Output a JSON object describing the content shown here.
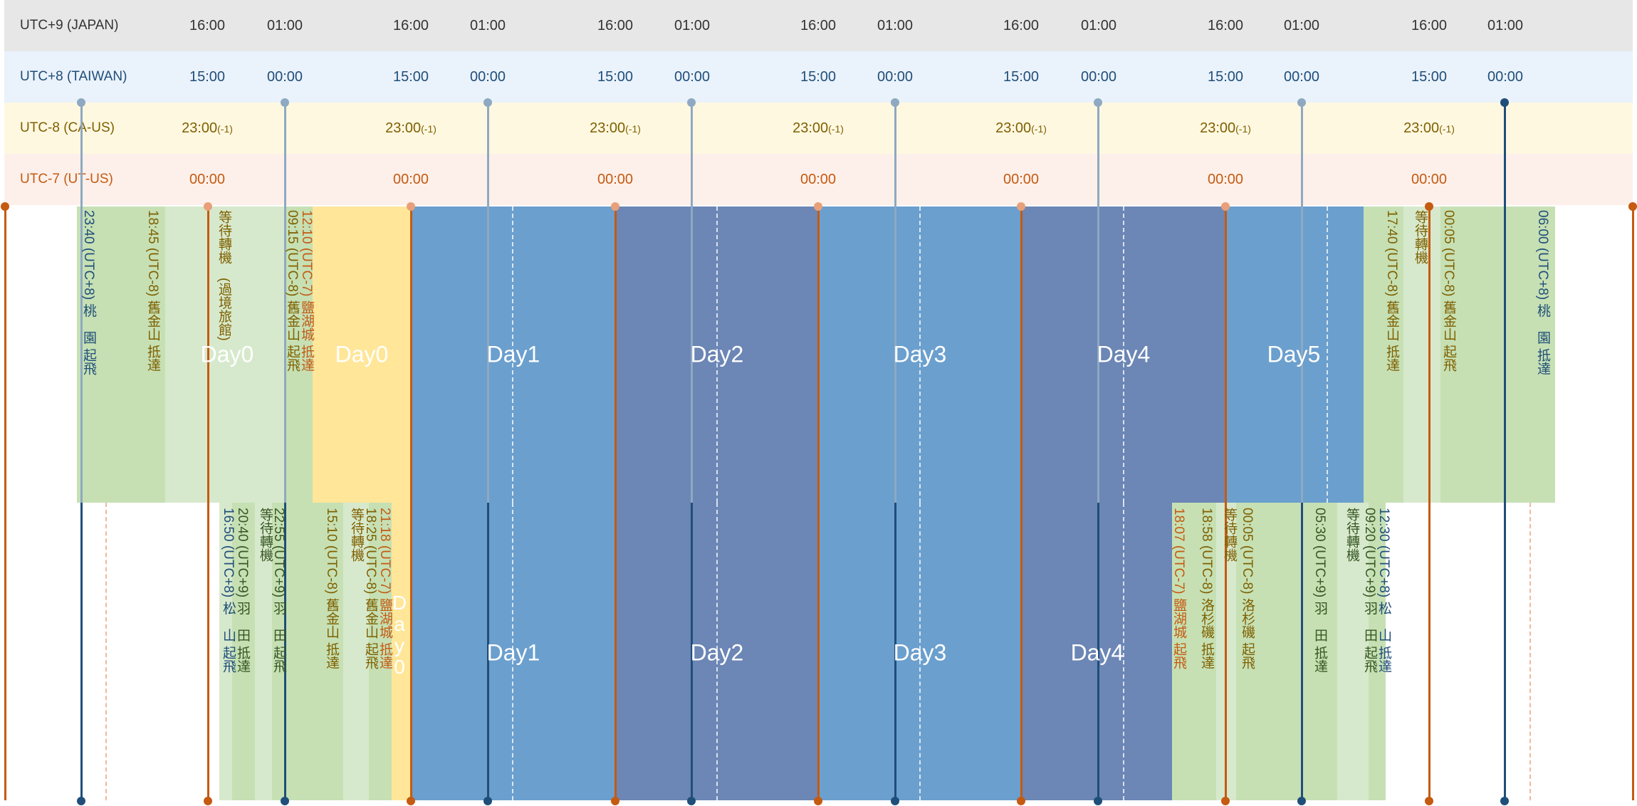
{
  "bands": {
    "japan": {
      "label": "UTC+9 (JAPAN)",
      "ticks": [
        "16:00",
        "01:00",
        "16:00",
        "01:00",
        "16:00",
        "01:00",
        "16:00",
        "01:00",
        "16:00",
        "01:00",
        "16:00",
        "01:00",
        "16:00",
        "01:00"
      ]
    },
    "taiwan": {
      "label": "UTC+8 (TAIWAN)",
      "ticks": [
        "15:00",
        "00:00",
        "15:00",
        "00:00",
        "15:00",
        "00:00",
        "15:00",
        "00:00",
        "15:00",
        "00:00",
        "15:00",
        "00:00",
        "15:00",
        "00:00"
      ]
    },
    "ca": {
      "label": "UTC-8 (CA-US)",
      "tick_time": "23:00",
      "tick_suffix": "(-1)"
    },
    "ut": {
      "label": "UTC-7 (UT-US)",
      "tick_time": "00:00"
    }
  },
  "colors": {
    "japan_band": "#e7e7e7",
    "taiwan_band": "#eaf2fb",
    "ca_band": "#fff8e1",
    "ut_band": "#fdf0ea",
    "blue_light": "#6b9fce",
    "blue_dark": "#6c86b5",
    "green_light": "#c6e0b4",
    "green_pale": "#d7e9cc",
    "yellow": "#ffe699",
    "orange_line": "#c55a11",
    "tw_line": "#1f4e79",
    "gray_line": "#8ea9c1"
  },
  "top_row": {
    "day_labels": [
      "Day0",
      "Day0",
      "Day1",
      "Day2",
      "Day3",
      "Day4",
      "Day5"
    ],
    "events": [
      "23:40 (UTC+8) 桃　園 起飛",
      "18:45 (UTC-8) 舊金山 抵達",
      "等待轉機　(過境旅館)",
      "12:10 (UTC-7) 鹽湖城 抵達",
      "09:15 (UTC-8) 舊金山 起飛",
      "17:40 (UTC-8) 舊金山 抵達",
      "等待轉機",
      "00:05 (UTC-8) 舊金山 起飛",
      "06:00 (UTC+8) 桃　園 抵達"
    ]
  },
  "bottom_row": {
    "day_labels": [
      "Day1",
      "Day2",
      "Day3",
      "Day4"
    ],
    "stacked_day": [
      "D",
      "a",
      "y",
      "0"
    ],
    "events": [
      "16:50 (UTC+8) 松　山 起飛",
      "20:40 (UTC+9) 羽　田 抵達",
      "等待轉機",
      "22:55 (UTC+9) 羽　田 起飛",
      "15:10 (UTC-8) 舊金山 抵達",
      "等待轉機",
      "18:25 (UTC-8) 舊金山 起飛",
      "21:18 (UTC-7) 鹽湖城 抵達",
      "18:07 (UTC-7) 鹽湖城 起飛",
      "18:58 (UTC-8) 洛杉磯 抵達",
      "等待轉機",
      "00:05 (UTC-8) 洛杉磯 起飛",
      "05:30 (UTC+9) 羽　田 抵達",
      "等待轉機",
      "09:20 (UTC+9) 羽　田 起飛",
      "12:30 (UTC+8) 松　山 抵達"
    ]
  }
}
